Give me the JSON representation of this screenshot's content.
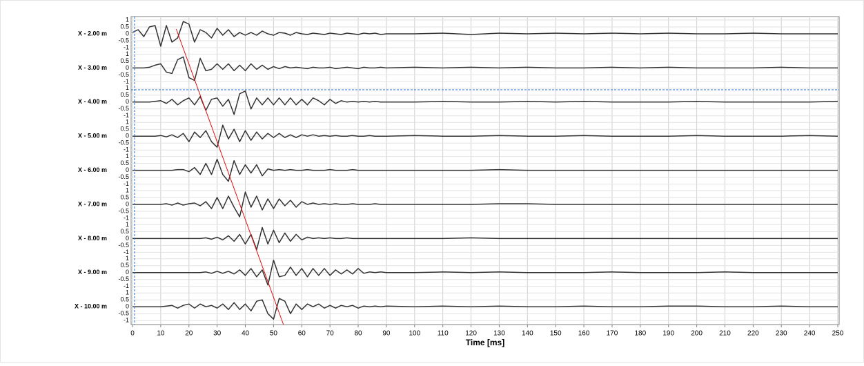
{
  "chart_data": {
    "type": "multi-trace-line",
    "x_label": "Time [ms]",
    "xlim": [
      0,
      250
    ],
    "xticks": [
      0,
      10,
      20,
      30,
      40,
      50,
      60,
      70,
      80,
      90,
      100,
      110,
      120,
      130,
      140,
      150,
      160,
      170,
      180,
      190,
      200,
      210,
      220,
      230,
      240,
      250
    ],
    "ylim": [
      -1,
      1
    ],
    "yticks": [
      1,
      0.5,
      0,
      -0.5,
      -1
    ],
    "grid": true,
    "x": [
      0,
      2,
      4,
      6,
      8,
      10,
      12,
      14,
      16,
      18,
      20,
      22,
      24,
      26,
      28,
      30,
      32,
      34,
      36,
      38,
      40,
      42,
      44,
      46,
      48,
      50,
      52,
      54,
      56,
      58,
      60,
      62,
      64,
      66,
      68,
      70,
      72,
      74,
      76,
      78,
      80,
      82,
      84,
      86,
      88,
      90,
      100,
      110,
      120,
      130,
      140,
      150,
      160,
      170,
      180,
      190,
      200,
      210,
      220,
      230,
      240,
      250
    ],
    "series": [
      {
        "name": "X -  2.00 m",
        "color": "#333333",
        "values": [
          0.1,
          0.3,
          -0.2,
          0.5,
          0.6,
          -0.9,
          0.6,
          -0.6,
          -0.3,
          0.9,
          0.7,
          -0.6,
          0.3,
          0.1,
          -0.3,
          0.4,
          -0.1,
          0.3,
          -0.2,
          0.1,
          -0.1,
          0.1,
          -0.1,
          0.2,
          0,
          -0.1,
          0.1,
          0.05,
          -0.1,
          0.1,
          0,
          -0.05,
          0.05,
          0,
          -0.05,
          0.05,
          0,
          -0.05,
          0.05,
          0,
          -0.05,
          0.05,
          0,
          0.05,
          -0.05,
          0,
          0,
          0.05,
          -0.05,
          0.05,
          0,
          0.05,
          0,
          0.05,
          0,
          0.05,
          0,
          0,
          0.05,
          0,
          0,
          0
        ]
      },
      {
        "name": "X -  3.00 m",
        "color": "#333333",
        "values": [
          0,
          0,
          0,
          0.05,
          0.2,
          0.3,
          -0.3,
          -0.4,
          0.6,
          0.8,
          -0.7,
          -0.9,
          0.7,
          -0.2,
          -0.1,
          0.3,
          -0.1,
          0.3,
          -0.2,
          0.2,
          -0.2,
          0.3,
          -0.1,
          0.2,
          -0.1,
          0.1,
          -0.05,
          0.1,
          0,
          0.05,
          0,
          -0.05,
          0.05,
          0,
          0,
          0.05,
          -0.05,
          0,
          0.05,
          0,
          -0.05,
          0.05,
          0,
          0,
          0.05,
          0,
          0.05,
          0,
          0.05,
          0,
          0.05,
          0,
          0,
          0.05,
          0,
          0.05,
          0,
          0,
          0,
          0.05,
          0,
          0
        ]
      },
      {
        "name": "X -  4.00 m",
        "color": "#333333",
        "values": [
          0,
          0,
          0,
          0,
          0.05,
          0.1,
          -0.1,
          0.2,
          -0.2,
          0.1,
          0.3,
          -0.2,
          0.4,
          -0.6,
          0.2,
          0.3,
          -0.3,
          0.2,
          -0.9,
          0.6,
          0.8,
          -0.5,
          0.3,
          -0.2,
          0.3,
          -0.2,
          0.3,
          -0.2,
          0.3,
          -0.2,
          0.2,
          -0.2,
          0.3,
          0.1,
          -0.2,
          0.2,
          -0.1,
          0.1,
          0,
          0.05,
          0,
          0.05,
          0,
          0.05,
          0,
          0,
          0,
          0.05,
          0,
          0,
          0.05,
          0,
          0.05,
          0,
          0,
          0,
          0.05,
          0,
          0,
          0,
          0,
          0.05
        ]
      },
      {
        "name": "X -  5.00 m",
        "color": "#333333",
        "values": [
          0,
          0,
          0,
          0,
          0,
          0.05,
          -0.05,
          0.1,
          -0.1,
          0.2,
          -0.4,
          0.3,
          -0.1,
          0.4,
          -0.4,
          -0.8,
          0.8,
          -0.2,
          0.5,
          -0.4,
          0.4,
          -0.3,
          0.3,
          -0.2,
          0.2,
          -0.1,
          0.2,
          -0.1,
          0.1,
          -0.1,
          0.1,
          0,
          0.1,
          0,
          0.05,
          0,
          0.05,
          0,
          0,
          0.05,
          0,
          0,
          0.05,
          0,
          0,
          0,
          0.05,
          0,
          0,
          0.05,
          0,
          0,
          0.05,
          0,
          0,
          0,
          0.05,
          0,
          0,
          0,
          0.05,
          0
        ]
      },
      {
        "name": "X -  6.00 m",
        "color": "#333333",
        "values": [
          0,
          0,
          0,
          0,
          0,
          0,
          0,
          0,
          0.05,
          0.05,
          -0.1,
          0.2,
          -0.3,
          0.5,
          -0.3,
          0.8,
          -0.3,
          -0.8,
          0.7,
          -0.3,
          0.4,
          -0.2,
          0.4,
          -0.4,
          0.1,
          0,
          0.05,
          0,
          0.05,
          0,
          0,
          0.05,
          0,
          0,
          0,
          0.05,
          0,
          0,
          0,
          0.05,
          0,
          0,
          0,
          0,
          0,
          0,
          0,
          0,
          0,
          0.05,
          0,
          0,
          0,
          0,
          0,
          0,
          0,
          0,
          0,
          0,
          0,
          0
        ]
      },
      {
        "name": "X -  7.00 m",
        "color": "#333333",
        "values": [
          0,
          0,
          0,
          0,
          0,
          0,
          0.05,
          -0.05,
          0.1,
          -0.05,
          0.05,
          0.1,
          -0.1,
          0.2,
          -0.3,
          0.5,
          -0.3,
          0.6,
          -0.2,
          -0.9,
          0.9,
          -0.2,
          0.6,
          -0.4,
          0.4,
          -0.3,
          0.4,
          -0.1,
          0.3,
          -0.2,
          0.2,
          0,
          0.1,
          0,
          0.05,
          0,
          0.05,
          0,
          0,
          0.05,
          0,
          0,
          0,
          0.05,
          0,
          0,
          0,
          0,
          0,
          0.05,
          0.05,
          0,
          0,
          0,
          0,
          0,
          0,
          0,
          0,
          0,
          0,
          0
        ]
      },
      {
        "name": "X -  8.00 m",
        "color": "#333333",
        "values": [
          0,
          0,
          0,
          0,
          0,
          0,
          0,
          0,
          0,
          0,
          0,
          0,
          0,
          0.05,
          -0.05,
          0.1,
          -0.1,
          0.2,
          -0.2,
          0.3,
          -0.4,
          0.3,
          -0.8,
          0.8,
          -0.4,
          0.6,
          -0.3,
          0.4,
          -0.2,
          0.3,
          -0.1,
          0.1,
          0,
          0.05,
          0,
          0.05,
          0,
          0,
          0.05,
          0,
          0,
          0,
          0,
          0,
          0,
          0,
          0,
          0,
          0.05,
          0,
          0,
          0,
          0,
          0,
          0,
          0,
          0,
          0,
          0,
          0,
          0,
          0
        ]
      },
      {
        "name": "X -  9.00 m",
        "color": "#333333",
        "values": [
          0,
          0,
          0,
          0,
          0,
          0,
          0,
          0,
          0,
          0,
          0,
          0,
          0,
          0.05,
          -0.05,
          0.1,
          -0.05,
          0.1,
          -0.1,
          0.2,
          -0.2,
          0.3,
          -0.3,
          0.2,
          -0.9,
          0.9,
          -0.3,
          -0.2,
          0.4,
          -0.2,
          0.3,
          -0.3,
          0.3,
          -0.2,
          0.3,
          -0.2,
          0.2,
          -0.1,
          0.2,
          -0.1,
          0.3,
          -0.05,
          0.05,
          0,
          0.05,
          0,
          0,
          0.05,
          0,
          0.05,
          0,
          0,
          0,
          0.05,
          0,
          0,
          0,
          0.05,
          0,
          0,
          0,
          0
        ]
      },
      {
        "name": "X -  10.00 m",
        "color": "#333333",
        "values": [
          0,
          0,
          0,
          0,
          0,
          0,
          0.05,
          0.1,
          -0.1,
          0.1,
          0.2,
          -0.1,
          0.2,
          0,
          0.1,
          -0.1,
          0.2,
          -0.2,
          0.3,
          -0.2,
          0.2,
          -0.3,
          0.4,
          0.5,
          -0.5,
          -0.9,
          0.6,
          0.4,
          -0.5,
          0.2,
          -0.2,
          0.2,
          0,
          0.2,
          -0.1,
          0.1,
          -0.1,
          0.1,
          0,
          0.1,
          -0.1,
          0.05,
          0,
          0.05,
          0,
          0.05,
          0,
          0.05,
          0,
          0.05,
          0,
          0,
          0.05,
          0,
          0,
          0.05,
          0.05,
          0,
          0,
          0.05,
          0,
          0
        ]
      }
    ],
    "trend_line": {
      "color": "#e01010",
      "x": [
        15.5,
        53.5
      ]
    }
  }
}
